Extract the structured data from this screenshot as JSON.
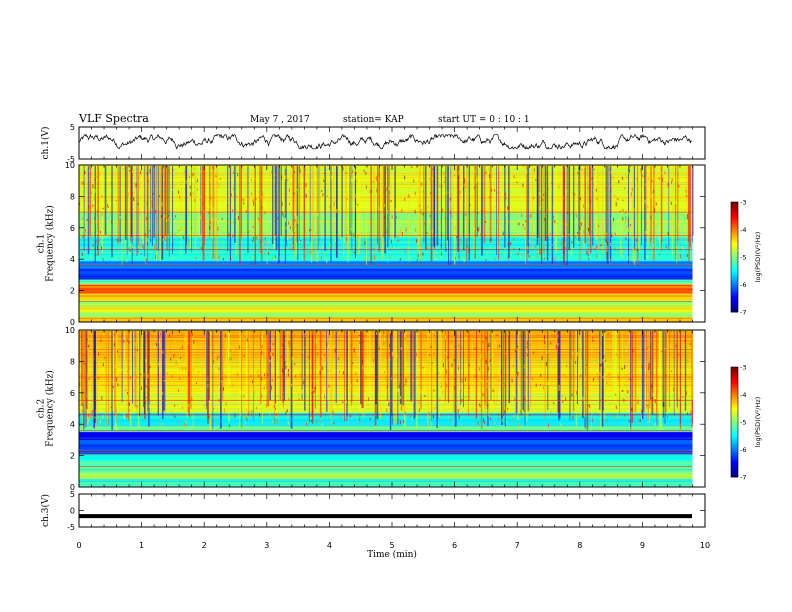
{
  "header": {
    "title": "VLF Spectra",
    "date": "May 7  , 2017",
    "station": "station= KAP",
    "start": "start  UT  =   0  : 10 : 1"
  },
  "chart_data": [
    {
      "type": "line",
      "name": "ch1-waveform",
      "ylabel": "ch.1(V)",
      "ylim": [
        -5,
        5
      ],
      "yticks": [
        "5",
        "-5"
      ],
      "xlim": [
        0,
        10
      ],
      "description_values": "noisy signal oscillating roughly between -1.5 and 2.5 V"
    },
    {
      "type": "heatmap",
      "name": "ch1-spectrogram",
      "ylabel": "ch.1\nFrequency (kHz)",
      "ylim": [
        0,
        10
      ],
      "yticks": [
        "0",
        "2",
        "4",
        "6",
        "8",
        "10"
      ],
      "xlim": [
        0,
        9.8
      ],
      "colorbar": {
        "label": "log(PSD)(V²/Hz)",
        "range": [
          -7,
          -3
        ],
        "ticks": [
          "-3",
          "-4",
          "-5",
          "-6",
          "-7"
        ]
      },
      "bands_khz_level": [
        [
          0,
          0.3,
          -4.2
        ],
        [
          0.3,
          0.6,
          -5.0
        ],
        [
          0.6,
          1.0,
          -4.6
        ],
        [
          1.0,
          1.4,
          -4.8
        ],
        [
          1.4,
          1.8,
          -4.3
        ],
        [
          1.8,
          2.4,
          -3.9
        ],
        [
          2.4,
          2.7,
          -5.2
        ],
        [
          2.7,
          3.4,
          -6.3
        ],
        [
          3.4,
          3.9,
          -5.9
        ],
        [
          3.9,
          5.4,
          -5.4
        ],
        [
          5.4,
          7.0,
          -4.9
        ],
        [
          7.0,
          10.0,
          -4.6
        ]
      ]
    },
    {
      "type": "heatmap",
      "name": "ch2-spectrogram",
      "ylabel": "ch.2\nFrequency (kHz)",
      "ylim": [
        0,
        10
      ],
      "yticks": [
        "0",
        "2",
        "4",
        "6",
        "8",
        "10"
      ],
      "xlim": [
        0,
        9.8
      ],
      "colorbar": {
        "label": "log(PSD)(V²/Hz)",
        "range": [
          -7,
          -3
        ],
        "ticks": [
          "-3",
          "-4",
          "-5",
          "-6",
          "-7"
        ]
      },
      "bands_khz_level": [
        [
          0,
          0.5,
          -5.3
        ],
        [
          0.5,
          0.9,
          -4.9
        ],
        [
          0.9,
          1.6,
          -5.2
        ],
        [
          1.6,
          2.1,
          -5.5
        ],
        [
          2.1,
          3.0,
          -6.2
        ],
        [
          3.0,
          3.5,
          -6.5
        ],
        [
          3.5,
          3.9,
          -5.1
        ],
        [
          3.9,
          4.7,
          -5.6
        ],
        [
          4.7,
          6.0,
          -4.6
        ],
        [
          6.0,
          8.0,
          -4.4
        ],
        [
          8.0,
          10.0,
          -4.2
        ]
      ]
    },
    {
      "type": "line",
      "name": "ch3-waveform",
      "ylabel": "ch.3(V)",
      "ylim": [
        -5,
        5
      ],
      "yticks": [
        "5",
        "0",
        "-5"
      ],
      "xlim": [
        0,
        10
      ],
      "y_value": -1.7
    }
  ],
  "xaxis": {
    "label": "Time  (min)",
    "ticks": [
      "0",
      "1",
      "2",
      "3",
      "4",
      "5",
      "6",
      "7",
      "8",
      "9",
      "10"
    ]
  }
}
